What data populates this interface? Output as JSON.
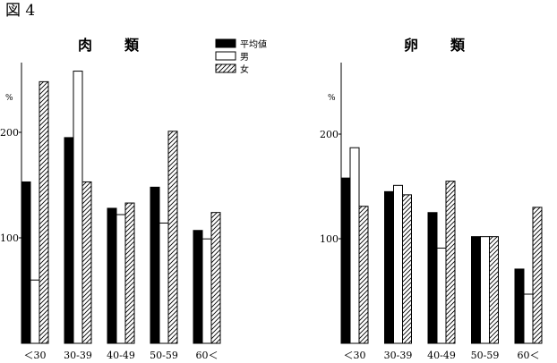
{
  "figure_label": "図 4",
  "legend": [
    {
      "name": "平均値",
      "style": "solid"
    },
    {
      "name": "男",
      "style": "open"
    },
    {
      "name": "女",
      "style": "hatched"
    }
  ],
  "colors": {
    "ink": "#000000",
    "paper": "#ffffff"
  },
  "chart_data": [
    {
      "type": "bar",
      "title": "肉　類",
      "ylabel": "%",
      "yticks": [
        100,
        200
      ],
      "ylim": [
        0,
        270
      ],
      "legend_position": "top-right",
      "categories": [
        "＜30",
        "30-39",
        "40-49",
        "50-59",
        "60＜"
      ],
      "series": [
        {
          "name": "平均値",
          "style": "solid",
          "values": [
            153,
            195,
            128,
            148,
            107
          ]
        },
        {
          "name": "男",
          "style": "open",
          "values": [
            60,
            258,
            122,
            114,
            99
          ]
        },
        {
          "name": "女",
          "style": "hatched",
          "values": [
            248,
            153,
            133,
            201,
            124
          ]
        }
      ]
    },
    {
      "type": "bar",
      "title": "卵　類",
      "ylabel": "%",
      "yticks": [
        100,
        200
      ],
      "ylim": [
        0,
        260
      ],
      "categories": [
        "＜30",
        "30-39",
        "40-49",
        "50-59",
        "60＜"
      ],
      "series": [
        {
          "name": "平均値",
          "style": "solid",
          "values": [
            158,
            145,
            125,
            102,
            71
          ]
        },
        {
          "name": "男",
          "style": "open",
          "values": [
            187,
            151,
            91,
            102,
            47
          ]
        },
        {
          "name": "女",
          "style": "hatched",
          "values": [
            131,
            142,
            155,
            102,
            130
          ]
        }
      ]
    }
  ]
}
